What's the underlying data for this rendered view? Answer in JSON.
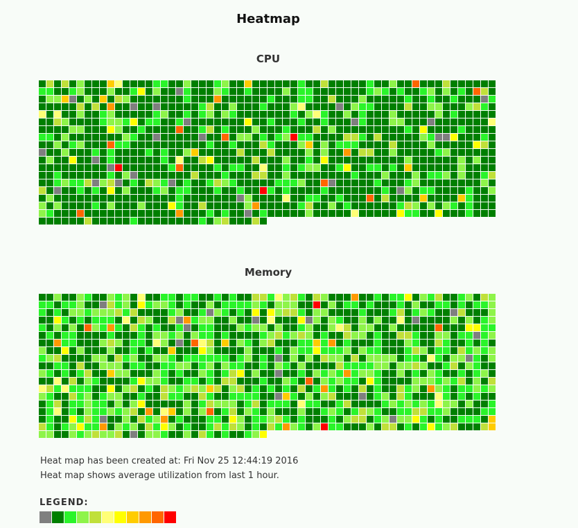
{
  "page": {
    "title": "Heatmap"
  },
  "sections": [
    {
      "id": "cpu",
      "title": "CPU",
      "cell_count": 1110,
      "seed": 7
    },
    {
      "id": "memory",
      "title": "Memory",
      "cell_count": 1110,
      "seed": 19
    }
  ],
  "info": {
    "created_line": "Heat map has been created at: Fri Nov 25 12:44:19 2016",
    "average_line": "Heat map shows average utilization from last 1 hour."
  },
  "legend": {
    "label": "LEGEND:",
    "colors": [
      "#7f7f7f",
      "#007f00",
      "#2af42a",
      "#8ef44a",
      "#c0e03a",
      "#ffff77",
      "#ffff00",
      "#ffcc00",
      "#ff9900",
      "#ff6600",
      "#ff0000"
    ]
  },
  "palette": {
    "grey": "#7f7f7f",
    "dark_green": "#007f00",
    "bright_green": "#2af42a",
    "light_green": "#8ef44a",
    "yellow_green": "#c0e03a",
    "pale_yellow": "#ffff77",
    "yellow": "#ffff00",
    "amber": "#ffcc00",
    "orange": "#ff9900",
    "dark_orange": "#ff6600",
    "red": "#ff0000"
  }
}
